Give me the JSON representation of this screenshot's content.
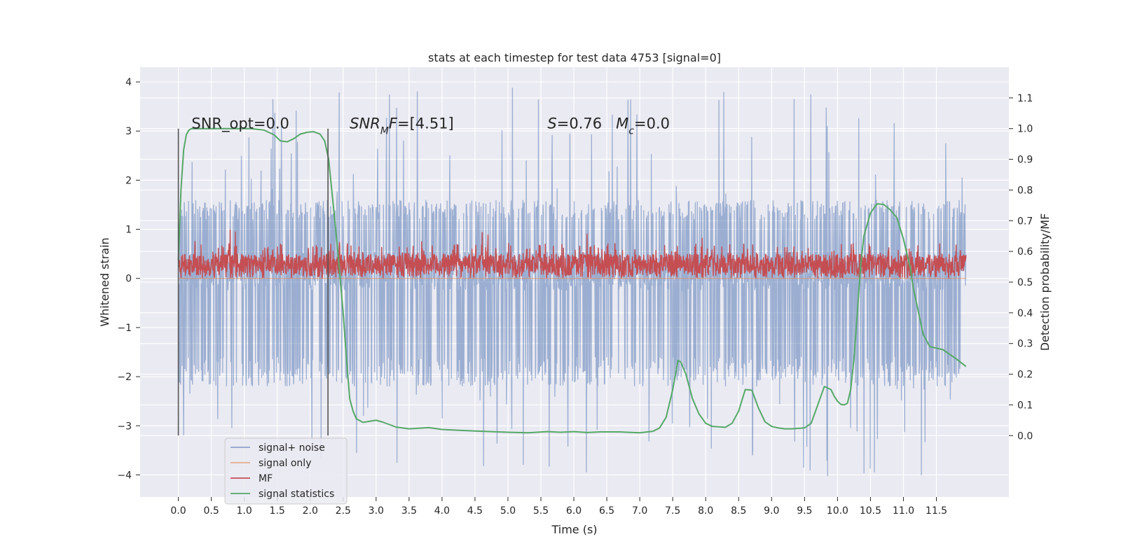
{
  "chart_data": {
    "type": "line",
    "title": "stats at each timestep for test data 4753 [signal=0]",
    "xlabel": "Time (s)",
    "ylabel": "Whitened strain",
    "ylabel_right": "Detection probability/MF",
    "xlim": [
      -0.58,
      12.6
    ],
    "ylim": [
      -4.45,
      4.3
    ],
    "ylim_right": [
      -0.2,
      1.2
    ],
    "x_ticks": [
      0.0,
      0.5,
      1.0,
      1.5,
      2.0,
      2.5,
      3.0,
      3.5,
      4.0,
      4.5,
      5.0,
      5.5,
      6.0,
      6.5,
      7.0,
      7.5,
      8.0,
      8.5,
      9.0,
      9.5,
      10.0,
      10.5,
      11.0,
      11.5
    ],
    "x_tick_labels": [
      "0.0",
      "0.5",
      "1.0",
      "1.5",
      "2.0",
      "2.5",
      "3.0",
      "3.5",
      "4.0",
      "4.5",
      "5.0",
      "5.5",
      "6.0",
      "6.5",
      "7.0",
      "7.5",
      "8.0",
      "8.5",
      "9.0",
      "9.5",
      "10.0",
      "10.5",
      "11.0",
      "11.5"
    ],
    "y_ticks": [
      -4,
      -3,
      -2,
      -1,
      0,
      1,
      2,
      3,
      4
    ],
    "y_tick_labels": [
      "−4",
      "−3",
      "−2",
      "−1",
      "0",
      "1",
      "2",
      "3",
      "4"
    ],
    "y_ticks_right": [
      0.0,
      0.1,
      0.2,
      0.3,
      0.4,
      0.5,
      0.6,
      0.7,
      0.8,
      0.9,
      1.0,
      1.1
    ],
    "y_tick_labels_right": [
      "0.0",
      "0.1",
      "0.2",
      "0.3",
      "0.4",
      "0.5",
      "0.6",
      "0.7",
      "0.8",
      "0.9",
      "1.0",
      "1.1"
    ],
    "grid": true,
    "legend_position": "lower-left",
    "annotations": [
      {
        "id": "snr-opt",
        "x": 0.2,
        "y": 3.05,
        "parts": [
          {
            "t": "SNR_opt=0.0"
          }
        ]
      },
      {
        "id": "snr-mf",
        "x": 2.6,
        "y": 3.05,
        "parts": [
          {
            "t": "SNR",
            "i": true
          },
          {
            "t": "M",
            "i": true,
            "sub": true
          },
          {
            "t": "F",
            "i": true
          },
          {
            "t": "=[4.51]"
          }
        ]
      },
      {
        "id": "stats-s-mc",
        "x": 5.6,
        "y": 3.05,
        "parts": [
          {
            "t": "S",
            "i": true
          },
          {
            "t": "=0.76   "
          },
          {
            "t": "M",
            "i": true
          },
          {
            "t": "c",
            "i": true,
            "sub": true
          },
          {
            "t": "=0.0"
          }
        ]
      }
    ],
    "vlines": [
      {
        "x": 0.0,
        "ymin": -3.2,
        "ymax": 3.05
      },
      {
        "x": 2.27,
        "ymin": -3.2,
        "ymax": 3.05
      }
    ],
    "series": [
      {
        "name": "signal+ noise",
        "color": "#4c72b0",
        "axis": "left",
        "x_range": [
          0.0,
          11.95
        ],
        "envelope": {
          "core_lower": -0.25,
          "core_upper": 0.55,
          "band_upper": [
            1.2,
            1.6
          ],
          "band_lower": [
            -2.2,
            -1.6
          ],
          "spike_max": 3.92,
          "spike_min": -4.05
        }
      },
      {
        "name": "signal only",
        "color": "#dd8452",
        "axis": "left",
        "x": [
          0.0,
          11.95
        ],
        "y": [
          0.0,
          0.0
        ]
      },
      {
        "name": "MF",
        "color": "#c44e52",
        "axis": "left",
        "x_range": [
          0.0,
          11.95
        ],
        "envelope": {
          "lower": 0.0,
          "upper": [
            0.5,
            0.72
          ],
          "spike_max": 1.0
        }
      },
      {
        "name": "signal statistics",
        "color": "#55a868",
        "axis": "right",
        "x": [
          0.0,
          0.04,
          0.08,
          0.12,
          0.16,
          0.2,
          0.25,
          0.3,
          0.4,
          0.5,
          0.7,
          0.9,
          1.1,
          1.3,
          1.45,
          1.55,
          1.65,
          1.75,
          1.85,
          1.95,
          2.05,
          2.15,
          2.22,
          2.28,
          2.35,
          2.42,
          2.5,
          2.55,
          2.6,
          2.65,
          2.7,
          2.8,
          3.0,
          3.1,
          3.3,
          3.5,
          3.8,
          4.0,
          4.5,
          5.0,
          5.3,
          5.6,
          5.8,
          6.0,
          6.2,
          6.4,
          6.7,
          7.0,
          7.2,
          7.3,
          7.4,
          7.5,
          7.58,
          7.62,
          7.7,
          7.8,
          7.9,
          8.0,
          8.1,
          8.3,
          8.4,
          8.5,
          8.6,
          8.7,
          8.8,
          8.9,
          9.0,
          9.1,
          9.2,
          9.3,
          9.5,
          9.6,
          9.7,
          9.8,
          9.9,
          9.95,
          10.0,
          10.05,
          10.1,
          10.15,
          10.2,
          10.25,
          10.3,
          10.35,
          10.4,
          10.5,
          10.6,
          10.7,
          10.8,
          10.9,
          11.0,
          11.1,
          11.15,
          11.2,
          11.3,
          11.4,
          11.6,
          11.8,
          11.95
        ],
        "y": [
          0.57,
          0.8,
          0.93,
          0.98,
          0.995,
          1.0,
          1.0,
          1.0,
          1.0,
          1.0,
          1.0,
          1.0,
          1.0,
          0.995,
          0.98,
          0.96,
          0.957,
          0.967,
          0.982,
          0.988,
          0.99,
          0.982,
          0.96,
          0.9,
          0.75,
          0.6,
          0.4,
          0.25,
          0.12,
          0.08,
          0.055,
          0.043,
          0.05,
          0.044,
          0.028,
          0.022,
          0.026,
          0.02,
          0.015,
          0.011,
          0.009,
          0.013,
          0.011,
          0.013,
          0.01,
          0.012,
          0.012,
          0.009,
          0.014,
          0.025,
          0.06,
          0.15,
          0.245,
          0.24,
          0.2,
          0.12,
          0.07,
          0.04,
          0.03,
          0.027,
          0.04,
          0.08,
          0.15,
          0.148,
          0.09,
          0.045,
          0.03,
          0.025,
          0.022,
          0.022,
          0.025,
          0.04,
          0.1,
          0.16,
          0.15,
          0.128,
          0.112,
          0.102,
          0.1,
          0.105,
          0.15,
          0.25,
          0.4,
          0.55,
          0.65,
          0.725,
          0.755,
          0.753,
          0.735,
          0.71,
          0.64,
          0.55,
          0.48,
          0.43,
          0.33,
          0.29,
          0.28,
          0.25,
          0.225
        ]
      }
    ]
  }
}
